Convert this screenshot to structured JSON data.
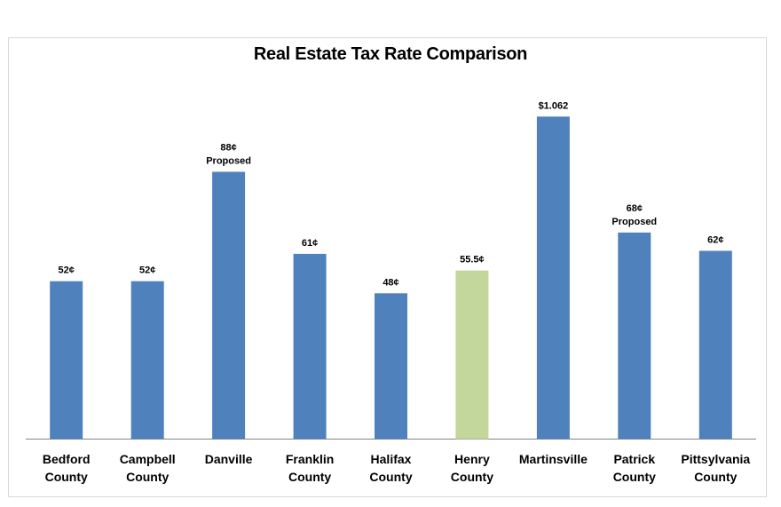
{
  "chart_data": {
    "type": "bar",
    "title": "Real Estate Tax Rate Comparison",
    "categories": [
      [
        "Bedford",
        "County"
      ],
      [
        "Campbell",
        "County"
      ],
      [
        "Danville"
      ],
      [
        "Franklin",
        "County"
      ],
      [
        "Halifax",
        "County"
      ],
      [
        "Henry",
        "County"
      ],
      [
        "Martinsville"
      ],
      [
        "Patrick",
        "County"
      ],
      [
        "Pittsylvania",
        "County"
      ]
    ],
    "values": [
      0.52,
      0.52,
      0.88,
      0.61,
      0.48,
      0.555,
      1.062,
      0.68,
      0.62
    ],
    "data_labels": [
      [
        "52¢"
      ],
      [
        "52¢"
      ],
      [
        "88¢",
        "Proposed"
      ],
      [
        "61¢"
      ],
      [
        "48¢"
      ],
      [
        "55.5¢"
      ],
      [
        "$1.062"
      ],
      [
        "68¢",
        "Proposed"
      ],
      [
        "62¢"
      ]
    ],
    "bar_colors": [
      "#4f81bd",
      "#4f81bd",
      "#4f81bd",
      "#4f81bd",
      "#4f81bd",
      "#c3d69b",
      "#4f81bd",
      "#4f81bd",
      "#4f81bd"
    ],
    "highlight_category": "Henry County",
    "ylim": [
      0,
      1.1
    ],
    "grid": false,
    "legend": "none",
    "axis_color": "#868686"
  }
}
